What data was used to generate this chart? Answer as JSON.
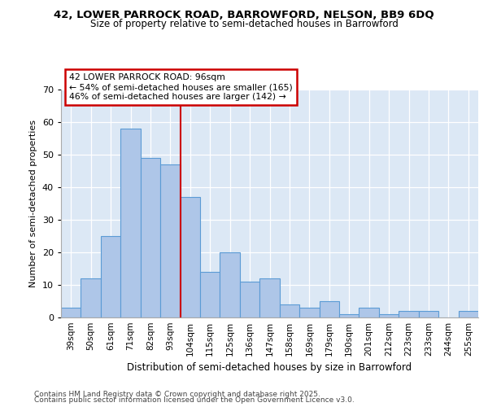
{
  "title1": "42, LOWER PARROCK ROAD, BARROWFORD, NELSON, BB9 6DQ",
  "title2": "Size of property relative to semi-detached houses in Barrowford",
  "xlabel": "Distribution of semi-detached houses by size in Barrowford",
  "ylabel": "Number of semi-detached properties",
  "bar_labels": [
    "39sqm",
    "50sqm",
    "61sqm",
    "71sqm",
    "82sqm",
    "93sqm",
    "104sqm",
    "115sqm",
    "125sqm",
    "136sqm",
    "147sqm",
    "158sqm",
    "169sqm",
    "179sqm",
    "190sqm",
    "201sqm",
    "212sqm",
    "223sqm",
    "233sqm",
    "244sqm",
    "255sqm"
  ],
  "bar_values": [
    3,
    12,
    25,
    58,
    49,
    47,
    37,
    14,
    20,
    11,
    12,
    4,
    3,
    5,
    1,
    3,
    1,
    2,
    2,
    0,
    2
  ],
  "bar_color": "#aec6e8",
  "bar_edgecolor": "#5b9bd5",
  "vline_x_index": 5.5,
  "vline_color": "#cc0000",
  "annotation_line1": "42 LOWER PARROCK ROAD: 96sqm",
  "annotation_line2": "← 54% of semi-detached houses are smaller (165)",
  "annotation_line3": "46% of semi-detached houses are larger (142) →",
  "annotation_box_edgecolor": "#cc0000",
  "footer1": "Contains HM Land Registry data © Crown copyright and database right 2025.",
  "footer2": "Contains public sector information licensed under the Open Government Licence v3.0.",
  "bg_color": "#dce8f5",
  "ylim": [
    0,
    70
  ],
  "yticks": [
    0,
    10,
    20,
    30,
    40,
    50,
    60,
    70
  ]
}
